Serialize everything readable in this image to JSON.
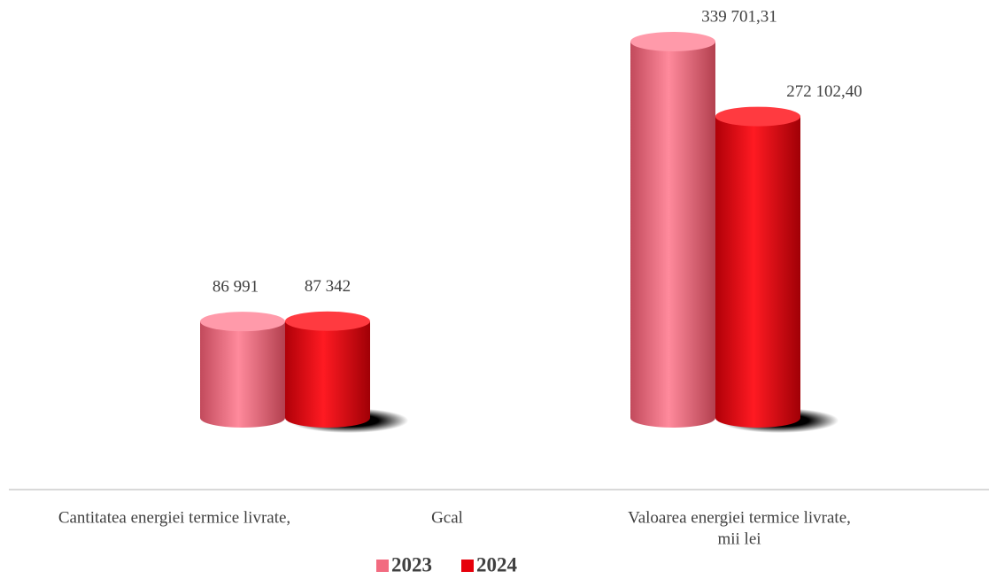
{
  "chart_data": {
    "type": "bar",
    "categories": [
      [
        "Cantitatea energiei termice livrate,",
        "Gcal"
      ],
      [
        "Valoarea energiei termice livrate,",
        "mii lei"
      ]
    ],
    "series": [
      {
        "name": "2023",
        "color": "#f26b80",
        "values": [
          86991,
          339701.31
        ],
        "value_labels": [
          "86 991",
          "339 701,31"
        ]
      },
      {
        "name": "2024",
        "color": "#e6000b",
        "values": [
          87342,
          272102.4
        ],
        "value_labels": [
          "87 342",
          "272 102,40"
        ]
      }
    ]
  }
}
